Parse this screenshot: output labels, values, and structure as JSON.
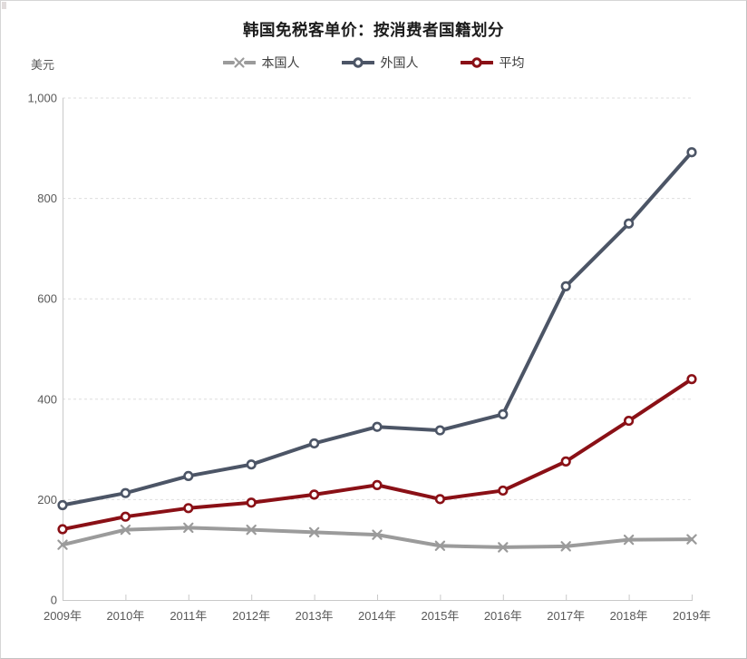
{
  "chart_data": {
    "type": "line",
    "title": "韩国免税客单价：按消费者国籍划分",
    "ylabel": "美元",
    "xlabel": "",
    "categories": [
      "2009年",
      "2010年",
      "2011年",
      "2012年",
      "2013年",
      "2014年",
      "2015年",
      "2016年",
      "2017年",
      "2018年",
      "2019年"
    ],
    "ylim": [
      0,
      1000
    ],
    "yticks": [
      0,
      200,
      400,
      600,
      800,
      1000
    ],
    "ytick_labels": [
      "0",
      "200",
      "400",
      "600",
      "800",
      "1,000"
    ],
    "grid": "horizontal-dashed",
    "legend_position": "top-center",
    "series": [
      {
        "name": "本国人",
        "marker": "x",
        "color": "#9b9b9b",
        "values": [
          110,
          140,
          144,
          140,
          135,
          130,
          108,
          105,
          107,
          120,
          121
        ]
      },
      {
        "name": "外国人",
        "marker": "circle",
        "color": "#4c5566",
        "values": [
          189,
          213,
          247,
          270,
          312,
          345,
          338,
          370,
          625,
          750,
          892
        ]
      },
      {
        "name": "平均",
        "marker": "circle",
        "color": "#8a1016",
        "values": [
          141,
          166,
          183,
          194,
          210,
          229,
          201,
          218,
          276,
          357,
          440
        ]
      }
    ],
    "colors": {
      "axis": "#c9c9c9",
      "gridline": "#dedede",
      "tick_label": "#595959",
      "title": "#1c1c1c",
      "legend_text": "#3d3d3d",
      "marker_fill": "#ffffff"
    }
  }
}
